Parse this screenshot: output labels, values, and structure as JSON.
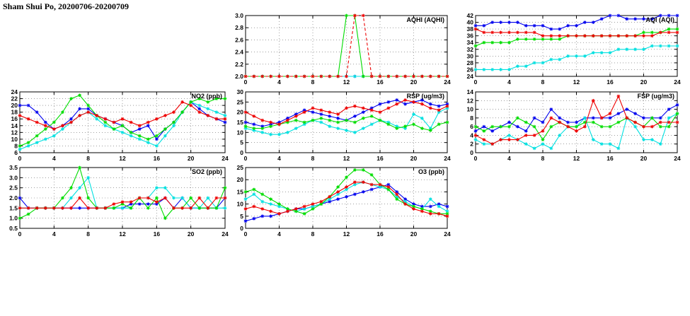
{
  "page": {
    "title": "Sham Shui Po, 20200706-20200709"
  },
  "colors": {
    "blue": "#0000ee",
    "cyan": "#00e0e0",
    "green": "#00dd00",
    "red": "#ee0000"
  },
  "chart_data": [
    {
      "id": "aqhi",
      "type": "line",
      "title": "AQHI (AQHI)",
      "xlim": [
        0,
        24
      ],
      "xticks": [
        0,
        4,
        8,
        12,
        16,
        20,
        24
      ],
      "x_start": 0,
      "x_step": 1,
      "ylim": [
        2.0,
        3.0
      ],
      "yticks": [
        2.0,
        2.2,
        2.4,
        2.6,
        2.8,
        3.0
      ],
      "ydecimals": 1,
      "grid": true,
      "series": [
        {
          "name": "blue",
          "color": "#0000ee",
          "values": [
            2,
            2,
            2,
            2,
            2,
            2,
            2,
            2,
            2,
            2,
            2,
            2,
            2,
            2,
            2,
            2,
            2,
            2,
            2,
            2,
            2,
            2,
            2,
            2,
            2
          ]
        },
        {
          "name": "cyan",
          "color": "#00e0e0",
          "values": [
            2,
            2,
            2,
            2,
            2,
            2,
            2,
            2,
            2,
            2,
            2,
            2,
            2,
            2,
            2,
            2,
            2,
            2,
            2,
            2,
            2,
            2,
            2,
            2,
            2
          ]
        },
        {
          "name": "green",
          "color": "#00dd00",
          "values": [
            2,
            2,
            2,
            2,
            2,
            2,
            2,
            2,
            2,
            2,
            2,
            2,
            3,
            3,
            2,
            2,
            2,
            2,
            2,
            2,
            2,
            2,
            2,
            2,
            2
          ]
        },
        {
          "name": "red",
          "color": "#ee0000",
          "dash": true,
          "values": [
            2,
            2,
            2,
            2,
            2,
            2,
            2,
            2,
            2,
            2,
            2,
            2,
            2,
            3,
            3,
            2,
            2,
            2,
            2,
            2,
            2,
            2,
            2,
            2,
            2
          ]
        }
      ]
    },
    {
      "id": "aqi",
      "type": "line",
      "title": "AQI (AQI)",
      "xlim": [
        0,
        24
      ],
      "xticks": [
        0,
        4,
        8,
        12,
        16,
        20,
        24
      ],
      "x_start": 0,
      "x_step": 1,
      "ylim": [
        24,
        42
      ],
      "yticks": [
        24,
        26,
        28,
        30,
        32,
        34,
        36,
        38,
        40,
        42
      ],
      "ydecimals": 0,
      "grid": true,
      "series": [
        {
          "name": "blue",
          "color": "#0000ee",
          "values": [
            39,
            39,
            40,
            40,
            40,
            40,
            39,
            39,
            39,
            38,
            38,
            39,
            39,
            40,
            40,
            41,
            42,
            42,
            41,
            41,
            41,
            41,
            42,
            42,
            42
          ]
        },
        {
          "name": "cyan",
          "color": "#00e0e0",
          "values": [
            26,
            26,
            26,
            26,
            26,
            27,
            27,
            28,
            28,
            29,
            29,
            30,
            30,
            30,
            31,
            31,
            31,
            32,
            32,
            32,
            32,
            33,
            33,
            33,
            33
          ]
        },
        {
          "name": "green",
          "color": "#00dd00",
          "values": [
            33,
            34,
            34,
            34,
            34,
            35,
            35,
            35,
            35,
            35,
            35,
            36,
            36,
            36,
            36,
            36,
            36,
            36,
            36,
            36,
            37,
            37,
            37,
            38,
            38
          ]
        },
        {
          "name": "red",
          "color": "#ee0000",
          "values": [
            38,
            37,
            37,
            37,
            37,
            37,
            37,
            37,
            36,
            36,
            36,
            36,
            36,
            36,
            36,
            36,
            36,
            36,
            36,
            36,
            36,
            36,
            37,
            37,
            37
          ]
        }
      ]
    },
    {
      "id": "no2",
      "type": "line",
      "title": "NO2 (ppb)",
      "xlim": [
        0,
        24
      ],
      "xticks": [
        0,
        4,
        8,
        12,
        16,
        20,
        24
      ],
      "x_start": 0,
      "x_step": 1,
      "ylim": [
        6,
        24
      ],
      "yticks": [
        6,
        8,
        10,
        12,
        14,
        16,
        18,
        20,
        22,
        24
      ],
      "ydecimals": 0,
      "grid": true,
      "series": [
        {
          "name": "blue",
          "color": "#0000ee",
          "values": [
            20,
            20,
            18,
            15,
            13,
            14,
            16,
            19,
            19,
            17,
            16,
            15,
            14,
            12,
            13,
            14,
            10,
            13,
            15,
            18,
            21,
            19,
            17,
            16,
            15
          ]
        },
        {
          "name": "cyan",
          "color": "#00e0e0",
          "values": [
            7,
            8,
            9,
            10,
            11,
            13,
            15,
            17,
            18,
            16,
            14,
            13,
            12,
            11,
            10,
            9,
            8,
            11,
            14,
            18,
            21,
            20,
            19,
            18,
            17
          ]
        },
        {
          "name": "green",
          "color": "#00dd00",
          "values": [
            8,
            9,
            11,
            13,
            15,
            18,
            22,
            23,
            20,
            17,
            15,
            13,
            14,
            12,
            11,
            10,
            11,
            13,
            15,
            18,
            21,
            22,
            21,
            22,
            22
          ]
        },
        {
          "name": "red",
          "color": "#ee0000",
          "values": [
            17,
            16,
            15,
            14,
            13,
            14,
            15,
            17,
            18,
            17,
            16,
            15,
            16,
            15,
            14,
            15,
            16,
            17,
            18,
            21,
            20,
            18,
            17,
            16,
            16
          ]
        }
      ]
    },
    {
      "id": "rsp",
      "type": "line",
      "title": "RSP (ug/m3)",
      "xlim": [
        0,
        24
      ],
      "xticks": [
        0,
        4,
        8,
        12,
        16,
        20,
        24
      ],
      "x_start": 0,
      "x_step": 1,
      "ylim": [
        0,
        30
      ],
      "yticks": [
        0,
        5,
        10,
        15,
        20,
        25,
        30
      ],
      "ydecimals": 0,
      "grid": true,
      "series": [
        {
          "name": "blue",
          "color": "#0000ee",
          "values": [
            15,
            14,
            13,
            14,
            15,
            17,
            19,
            21,
            20,
            19,
            18,
            17,
            16,
            18,
            20,
            22,
            24,
            25,
            26,
            24,
            25,
            26,
            24,
            23,
            24
          ]
        },
        {
          "name": "cyan",
          "color": "#00e0e0",
          "values": [
            12,
            11,
            10,
            9,
            9,
            10,
            12,
            14,
            16,
            15,
            13,
            12,
            11,
            10,
            12,
            14,
            16,
            15,
            13,
            12,
            19,
            17,
            12,
            20,
            22
          ]
        },
        {
          "name": "green",
          "color": "#00dd00",
          "values": [
            13,
            12,
            12,
            13,
            14,
            15,
            16,
            15,
            16,
            17,
            16,
            15,
            16,
            15,
            17,
            18,
            16,
            14,
            12,
            13,
            14,
            12,
            11,
            14,
            15
          ]
        },
        {
          "name": "red",
          "color": "#ee0000",
          "values": [
            20,
            18,
            16,
            15,
            14,
            16,
            18,
            20,
            22,
            21,
            20,
            19,
            22,
            23,
            22,
            21,
            20,
            22,
            24,
            26,
            25,
            24,
            22,
            21,
            23
          ]
        }
      ]
    },
    {
      "id": "fsp",
      "type": "line",
      "title": "FSP (ug/m3)",
      "xlim": [
        0,
        24
      ],
      "xticks": [
        0,
        4,
        8,
        12,
        16,
        20,
        24
      ],
      "x_start": 0,
      "x_step": 1,
      "ylim": [
        0,
        14
      ],
      "yticks": [
        0,
        2,
        4,
        6,
        8,
        10,
        12,
        14
      ],
      "ydecimals": 0,
      "grid": true,
      "series": [
        {
          "name": "blue",
          "color": "#0000ee",
          "values": [
            5,
            6,
            5,
            6,
            7,
            6,
            5,
            8,
            7,
            10,
            8,
            7,
            7,
            8,
            8,
            8,
            8,
            9,
            10,
            9,
            8,
            8,
            8,
            10,
            11
          ]
        },
        {
          "name": "cyan",
          "color": "#00e0e0",
          "values": [
            3,
            2,
            2,
            3,
            4,
            3,
            2,
            1,
            2,
            1,
            4,
            6,
            6,
            8,
            3,
            2,
            2,
            1,
            8,
            6,
            3,
            3,
            2,
            8,
            9
          ]
        },
        {
          "name": "green",
          "color": "#00dd00",
          "values": [
            6,
            5,
            6,
            6,
            6,
            8,
            7,
            6,
            3,
            6,
            7,
            6,
            6,
            7,
            7,
            6,
            6,
            7,
            8,
            7,
            6,
            8,
            6,
            6,
            9
          ]
        },
        {
          "name": "red",
          "color": "#ee0000",
          "values": [
            4,
            3,
            2,
            3,
            3,
            3,
            4,
            4,
            5,
            8,
            7,
            6,
            5,
            6,
            12,
            8,
            9,
            13,
            8,
            7,
            6,
            6,
            7,
            7,
            7
          ]
        }
      ]
    },
    {
      "id": "so2",
      "type": "line",
      "title": "SO2 (ppb)",
      "xlim": [
        0,
        24
      ],
      "xticks": [
        0,
        4,
        8,
        12,
        16,
        20,
        24
      ],
      "x_start": 0,
      "x_step": 1,
      "ylim": [
        0.5,
        3.5
      ],
      "yticks": [
        0.5,
        1.0,
        1.5,
        2.0,
        2.5,
        3.0,
        3.5
      ],
      "ydecimals": 1,
      "grid": true,
      "series": [
        {
          "name": "blue",
          "color": "#0000ee",
          "values": [
            2.0,
            1.5,
            1.5,
            1.5,
            1.5,
            1.5,
            1.5,
            1.5,
            1.5,
            1.5,
            1.5,
            1.5,
            1.5,
            1.7,
            1.7,
            1.7,
            1.7,
            2.0,
            1.5,
            2.0,
            1.5,
            1.5,
            1.5,
            1.5,
            2.0
          ]
        },
        {
          "name": "cyan",
          "color": "#00e0e0",
          "values": [
            1.5,
            1.5,
            1.5,
            1.5,
            1.5,
            1.5,
            2.0,
            2.5,
            3.0,
            1.5,
            1.5,
            1.5,
            1.5,
            1.5,
            2.0,
            2.0,
            2.5,
            2.5,
            2.0,
            2.0,
            1.5,
            1.5,
            2.0,
            1.5,
            1.5
          ]
        },
        {
          "name": "green",
          "color": "#00dd00",
          "values": [
            1.0,
            1.2,
            1.5,
            1.5,
            1.5,
            2.0,
            2.5,
            3.5,
            2.0,
            1.5,
            1.5,
            1.5,
            1.7,
            1.5,
            2.0,
            1.5,
            2.0,
            1.0,
            1.5,
            1.5,
            2.0,
            1.5,
            1.5,
            1.5,
            2.5
          ]
        },
        {
          "name": "red",
          "color": "#ee0000",
          "values": [
            1.5,
            1.5,
            1.5,
            1.5,
            1.5,
            1.5,
            1.5,
            2.0,
            1.5,
            1.5,
            1.5,
            1.7,
            1.8,
            1.8,
            2.0,
            2.0,
            1.8,
            2.0,
            1.5,
            1.5,
            1.5,
            2.0,
            1.5,
            2.0,
            2.0
          ]
        }
      ]
    },
    {
      "id": "o3",
      "type": "line",
      "title": "O3 (ppb)",
      "xlim": [
        0,
        24
      ],
      "xticks": [
        0,
        4,
        8,
        12,
        16,
        20,
        24
      ],
      "x_start": 0,
      "x_step": 1,
      "ylim": [
        0,
        25
      ],
      "yticks": [
        0,
        5,
        10,
        15,
        20,
        25
      ],
      "ydecimals": 0,
      "grid": true,
      "series": [
        {
          "name": "blue",
          "color": "#0000ee",
          "values": [
            3,
            4,
            5,
            5,
            6,
            7,
            8,
            8,
            9,
            10,
            11,
            12,
            13,
            14,
            15,
            16,
            17,
            18,
            15,
            12,
            10,
            9,
            9,
            10,
            9
          ]
        },
        {
          "name": "cyan",
          "color": "#00e0e0",
          "values": [
            12,
            14,
            11,
            10,
            9,
            8,
            7,
            8,
            9,
            10,
            12,
            14,
            16,
            18,
            19,
            18,
            17,
            16,
            13,
            11,
            9,
            8,
            12,
            9,
            7
          ]
        },
        {
          "name": "green",
          "color": "#00dd00",
          "values": [
            15,
            16,
            14,
            12,
            10,
            8,
            7,
            6,
            8,
            10,
            13,
            17,
            21,
            24,
            24,
            22,
            18,
            16,
            12,
            10,
            9,
            8,
            7,
            6,
            6
          ]
        },
        {
          "name": "red",
          "color": "#ee0000",
          "values": [
            8,
            9,
            8,
            7,
            6,
            7,
            8,
            9,
            10,
            11,
            13,
            15,
            17,
            19,
            19,
            18,
            18,
            17,
            14,
            10,
            8,
            7,
            6,
            6,
            5
          ]
        }
      ]
    }
  ]
}
